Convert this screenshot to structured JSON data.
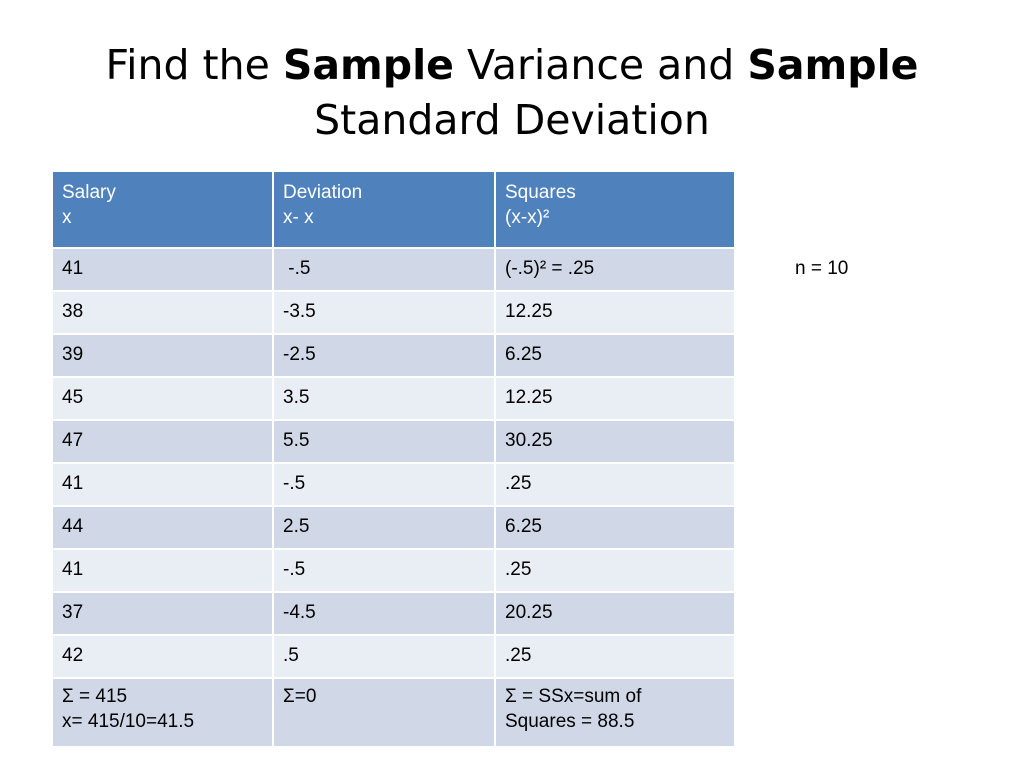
{
  "title": {
    "part1": "Find the ",
    "bold1": "Sample",
    "part2": " Variance and ",
    "bold2": "Sample",
    "part3": "Standard Deviation"
  },
  "table": {
    "headers": [
      {
        "line1": "Salary",
        "line2": "x"
      },
      {
        "line1": "Deviation",
        "line2": "x- x"
      },
      {
        "line1": "Squares",
        "line2": "(x-x)²"
      }
    ],
    "rows": [
      [
        "41",
        " -.5",
        "(-.5)² = .25"
      ],
      [
        "38",
        "-3.5",
        "12.25"
      ],
      [
        "39",
        "-2.5",
        "6.25"
      ],
      [
        "45",
        "3.5",
        "12.25"
      ],
      [
        "47",
        "5.5",
        "30.25"
      ],
      [
        "41",
        "-.5",
        ".25"
      ],
      [
        "44",
        "2.5",
        "6.25"
      ],
      [
        "41",
        "-.5",
        ".25"
      ],
      [
        "37",
        "-4.5",
        "20.25"
      ],
      [
        "42",
        ".5",
        ".25"
      ]
    ],
    "sum_row": [
      {
        "line1": "Σ = 415",
        "line2": "x= 415/10=41.5"
      },
      {
        "line1": "Σ=0",
        "line2": ""
      },
      {
        "line1": "Σ = SSx=sum of",
        "line2": "Squares = 88.5"
      }
    ]
  },
  "note": "n = 10"
}
